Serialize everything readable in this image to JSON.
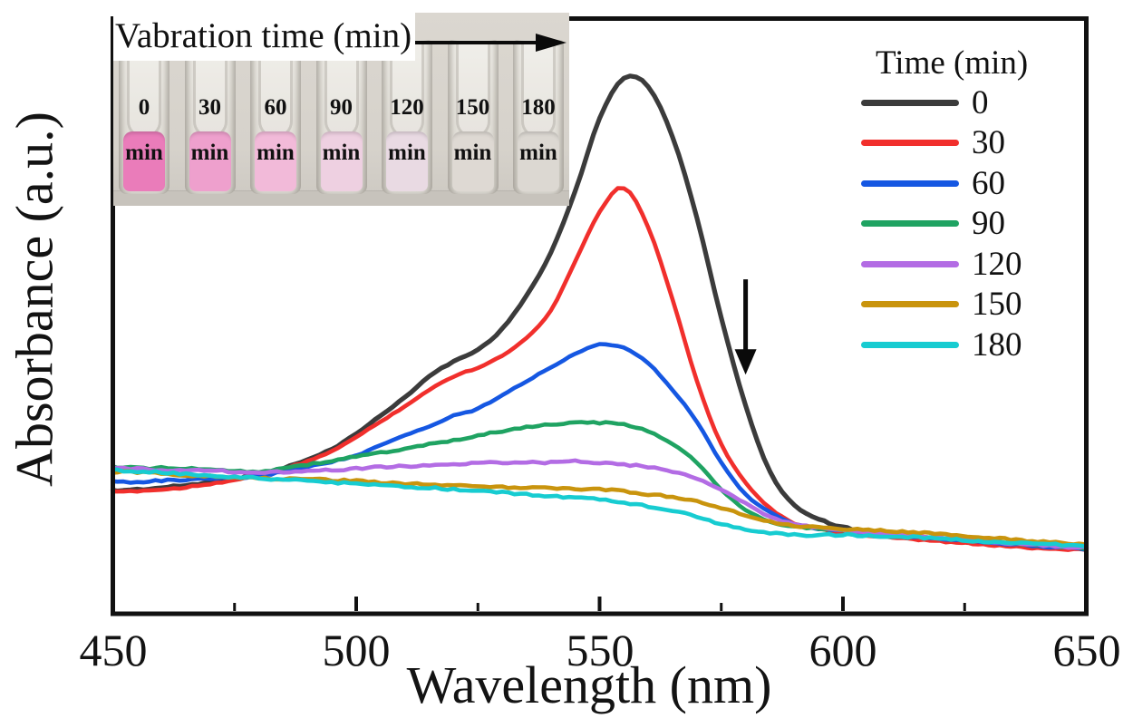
{
  "axes": {
    "xlabel": "Wavelength (nm)",
    "ylabel": "Absorbance (a.u.)",
    "x_ticks": [
      450,
      500,
      550,
      600,
      650
    ],
    "x_minor_ticks": [
      475,
      525,
      575,
      625
    ]
  },
  "legend": {
    "title": "Time (min)"
  },
  "inset": {
    "title": "Vabration time (min)",
    "unit_label": "min",
    "background_color": "#d6d2cb",
    "arrow_direction": "right",
    "cuvettes": [
      {
        "time": "0",
        "liquid_color": "#ea7cba"
      },
      {
        "time": "30",
        "liquid_color": "#eea0cd"
      },
      {
        "time": "60",
        "liquid_color": "#f2bad9"
      },
      {
        "time": "90",
        "liquid_color": "#eed0e1"
      },
      {
        "time": "120",
        "liquid_color": "#e9dae3"
      },
      {
        "time": "150",
        "liquid_color": "#ded9d3"
      },
      {
        "time": "180",
        "liquid_color": "#dcd8d2"
      }
    ]
  },
  "chart_data": {
    "type": "line",
    "title": "",
    "xlabel": "Wavelength (nm)",
    "ylabel": "Absorbance (a.u.)",
    "xlim": [
      450,
      650
    ],
    "ylim": [
      0,
      1
    ],
    "grid": false,
    "legend_position": "upper right",
    "x": [
      450,
      455,
      460,
      465,
      470,
      475,
      480,
      485,
      490,
      495,
      500,
      505,
      510,
      515,
      520,
      525,
      530,
      535,
      540,
      545,
      550,
      555,
      560,
      565,
      570,
      575,
      580,
      585,
      590,
      595,
      600,
      610,
      620,
      630,
      640,
      650
    ],
    "series": [
      {
        "name": "0",
        "color": "#3b3b3b",
        "values": [
          0.205,
          0.207,
          0.21,
          0.214,
          0.219,
          0.225,
          0.233,
          0.243,
          0.257,
          0.275,
          0.301,
          0.331,
          0.362,
          0.397,
          0.422,
          0.442,
          0.477,
          0.533,
          0.605,
          0.708,
          0.83,
          0.898,
          0.883,
          0.799,
          0.663,
          0.495,
          0.348,
          0.237,
          0.181,
          0.158,
          0.144,
          0.131,
          0.123,
          0.117,
          0.112,
          0.109
        ]
      },
      {
        "name": "30",
        "color": "#f12f2c",
        "values": [
          0.202,
          0.205,
          0.207,
          0.211,
          0.217,
          0.223,
          0.231,
          0.242,
          0.254,
          0.272,
          0.295,
          0.321,
          0.347,
          0.374,
          0.397,
          0.412,
          0.432,
          0.462,
          0.508,
          0.59,
          0.673,
          0.714,
          0.647,
          0.526,
          0.389,
          0.283,
          0.219,
          0.176,
          0.15,
          0.141,
          0.134,
          0.126,
          0.12,
          0.114,
          0.109,
          0.106
        ]
      },
      {
        "name": "60",
        "color": "#1557e2",
        "values": [
          0.22,
          0.22,
          0.222,
          0.223,
          0.225,
          0.226,
          0.23,
          0.237,
          0.245,
          0.254,
          0.264,
          0.281,
          0.298,
          0.313,
          0.331,
          0.343,
          0.366,
          0.389,
          0.412,
          0.435,
          0.45,
          0.445,
          0.419,
          0.374,
          0.321,
          0.252,
          0.199,
          0.169,
          0.149,
          0.141,
          0.138,
          0.131,
          0.125,
          0.119,
          0.112,
          0.108
        ]
      },
      {
        "name": "90",
        "color": "#1fa362",
        "values": [
          0.245,
          0.243,
          0.243,
          0.242,
          0.24,
          0.239,
          0.237,
          0.243,
          0.249,
          0.255,
          0.263,
          0.269,
          0.275,
          0.283,
          0.289,
          0.298,
          0.305,
          0.312,
          0.316,
          0.319,
          0.319,
          0.316,
          0.305,
          0.283,
          0.252,
          0.207,
          0.173,
          0.153,
          0.146,
          0.141,
          0.138,
          0.132,
          0.126,
          0.12,
          0.114,
          0.109
        ]
      },
      {
        "name": "120",
        "color": "#b36ce4",
        "values": [
          0.242,
          0.242,
          0.24,
          0.24,
          0.239,
          0.237,
          0.236,
          0.237,
          0.239,
          0.24,
          0.242,
          0.245,
          0.246,
          0.248,
          0.249,
          0.251,
          0.252,
          0.254,
          0.252,
          0.255,
          0.252,
          0.249,
          0.245,
          0.237,
          0.225,
          0.207,
          0.184,
          0.161,
          0.149,
          0.143,
          0.138,
          0.132,
          0.126,
          0.12,
          0.114,
          0.109
        ]
      },
      {
        "name": "150",
        "color": "#c9940d",
        "values": [
          0.237,
          0.236,
          0.234,
          0.231,
          0.23,
          0.228,
          0.226,
          0.225,
          0.225,
          0.223,
          0.222,
          0.219,
          0.217,
          0.216,
          0.214,
          0.213,
          0.211,
          0.21,
          0.21,
          0.208,
          0.207,
          0.204,
          0.199,
          0.195,
          0.187,
          0.176,
          0.164,
          0.153,
          0.146,
          0.143,
          0.141,
          0.137,
          0.132,
          0.126,
          0.12,
          0.114
        ]
      },
      {
        "name": "180",
        "color": "#17ccd1",
        "values": [
          0.24,
          0.237,
          0.236,
          0.233,
          0.231,
          0.228,
          0.226,
          0.223,
          0.222,
          0.219,
          0.217,
          0.214,
          0.211,
          0.21,
          0.207,
          0.205,
          0.202,
          0.199,
          0.196,
          0.193,
          0.19,
          0.185,
          0.179,
          0.172,
          0.161,
          0.149,
          0.14,
          0.134,
          0.131,
          0.131,
          0.131,
          0.128,
          0.125,
          0.119,
          0.117,
          0.111
        ]
      }
    ],
    "annotations": [
      {
        "type": "arrow",
        "direction": "down",
        "x": 580,
        "y_from": 0.56,
        "y_to": 0.4
      }
    ]
  }
}
